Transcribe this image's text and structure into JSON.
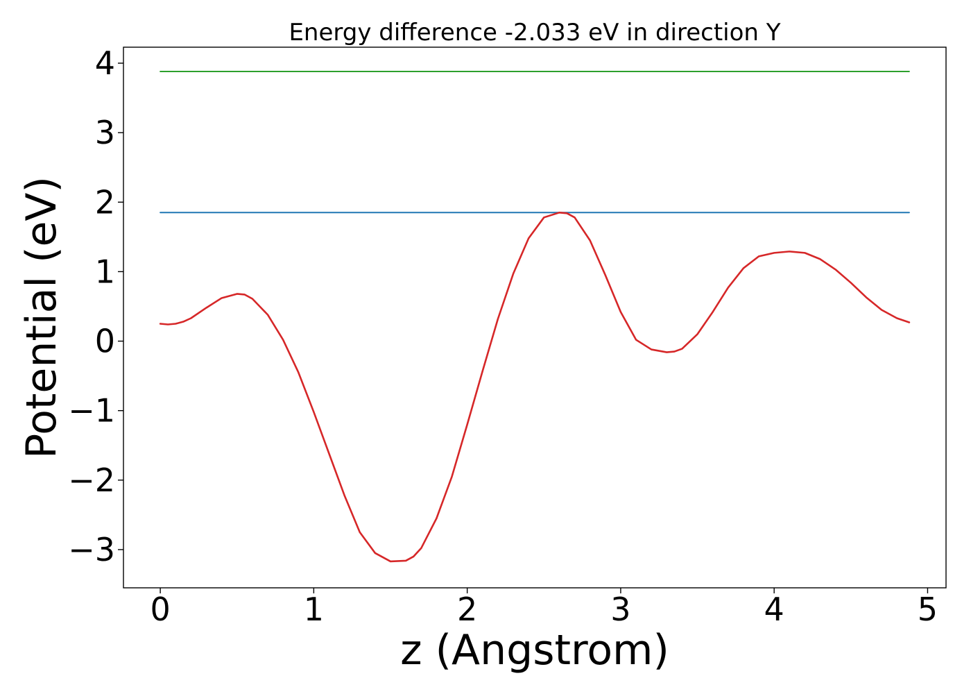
{
  "chart_data": {
    "type": "line",
    "title": "Energy difference -2.033 eV in direction Y",
    "xlabel": "z (Angstrom)",
    "ylabel": "Potential (eV)",
    "xlim": [
      -0.24,
      5.12
    ],
    "ylim": [
      -3.55,
      4.23
    ],
    "xticks": [
      0,
      1,
      2,
      3,
      4,
      5
    ],
    "xtick_labels": [
      "0",
      "1",
      "2",
      "3",
      "4",
      "5"
    ],
    "yticks": [
      -3,
      -2,
      -1,
      0,
      1,
      2,
      3,
      4
    ],
    "ytick_labels": [
      "−3",
      "−2",
      "−1",
      "0",
      "1",
      "2",
      "3",
      "4"
    ],
    "grid": false,
    "series": [
      {
        "color": "#2ca02c",
        "x": [
          0,
          4.88
        ],
        "y": [
          3.88,
          3.88
        ]
      },
      {
        "color": "#1f77b4",
        "x": [
          0,
          4.88
        ],
        "y": [
          1.85,
          1.85
        ]
      },
      {
        "color": "#d62728",
        "x": [
          0,
          0.05,
          0.1,
          0.15,
          0.2,
          0.3,
          0.4,
          0.5,
          0.55,
          0.6,
          0.7,
          0.8,
          0.9,
          1.0,
          1.1,
          1.2,
          1.3,
          1.4,
          1.5,
          1.6,
          1.65,
          1.7,
          1.8,
          1.9,
          2.0,
          2.1,
          2.2,
          2.3,
          2.4,
          2.5,
          2.6,
          2.65,
          2.7,
          2.8,
          2.9,
          3.0,
          3.1,
          3.2,
          3.3,
          3.35,
          3.4,
          3.5,
          3.6,
          3.7,
          3.8,
          3.9,
          4.0,
          4.1,
          4.2,
          4.3,
          4.4,
          4.5,
          4.6,
          4.7,
          4.8,
          4.88
        ],
        "y": [
          0.25,
          0.24,
          0.25,
          0.28,
          0.33,
          0.48,
          0.62,
          0.68,
          0.67,
          0.61,
          0.38,
          0.02,
          -0.45,
          -1.02,
          -1.62,
          -2.22,
          -2.75,
          -3.05,
          -3.17,
          -3.16,
          -3.1,
          -2.98,
          -2.55,
          -1.95,
          -1.2,
          -0.43,
          0.32,
          0.97,
          1.48,
          1.78,
          1.85,
          1.84,
          1.78,
          1.45,
          0.95,
          0.42,
          0.02,
          -0.12,
          -0.16,
          -0.15,
          -0.11,
          0.1,
          0.42,
          0.77,
          1.05,
          1.22,
          1.27,
          1.29,
          1.27,
          1.18,
          1.03,
          0.84,
          0.63,
          0.45,
          0.33,
          0.27
        ]
      }
    ]
  }
}
